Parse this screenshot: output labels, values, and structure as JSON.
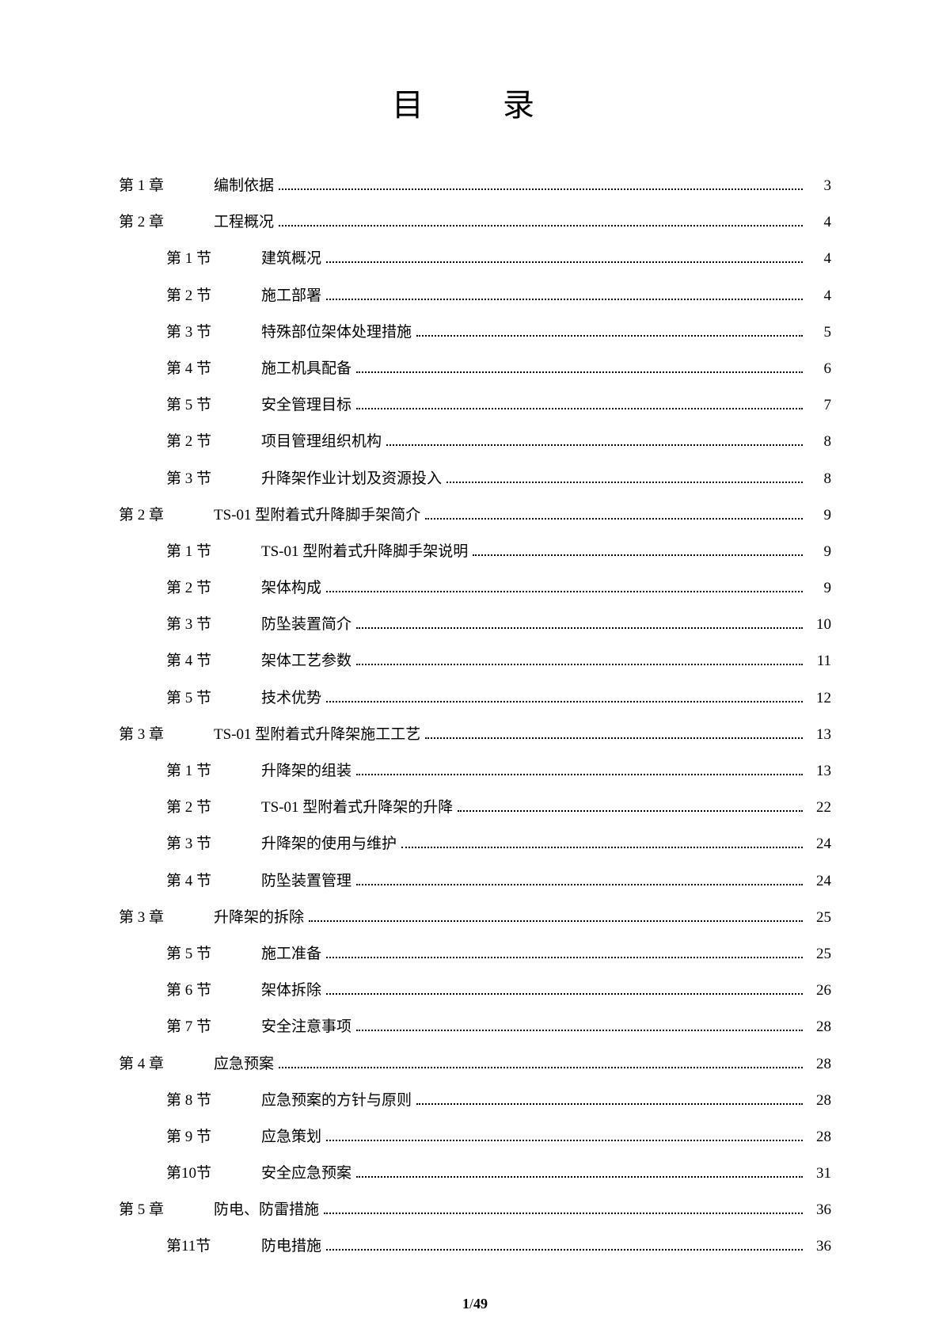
{
  "title": "目　录",
  "toc": {
    "entries": [
      {
        "level": "chapter",
        "label": "第 1 章",
        "title": "编制依据",
        "page": "3"
      },
      {
        "level": "chapter",
        "label": "第 2 章",
        "title": "工程概况",
        "page": "4"
      },
      {
        "level": "section",
        "label": "第 1 节",
        "title": "建筑概况",
        "page": "4"
      },
      {
        "level": "section",
        "label": "第 2 节",
        "title": "施工部署",
        "page": "4"
      },
      {
        "level": "section",
        "label": "第 3 节",
        "title": "特殊部位架体处理措施",
        "page": "5"
      },
      {
        "level": "section",
        "label": "第 4 节",
        "title": "施工机具配备",
        "page": "6"
      },
      {
        "level": "section",
        "label": "第 5 节",
        "title": "安全管理目标",
        "page": "7"
      },
      {
        "level": "section",
        "label": "第 2 节",
        "title": "项目管理组织机构",
        "page": "8"
      },
      {
        "level": "section",
        "label": "第 3 节",
        "title": "升降架作业计划及资源投入",
        "page": "8"
      },
      {
        "level": "chapter",
        "label": "第 2 章",
        "title": "TS-01 型附着式升降脚手架简介",
        "page": "9"
      },
      {
        "level": "section",
        "label": "第 1 节",
        "title": "TS-01 型附着式升降脚手架说明",
        "page": "9"
      },
      {
        "level": "section",
        "label": "第 2 节",
        "title": "架体构成",
        "page": "9"
      },
      {
        "level": "section",
        "label": "第 3 节",
        "title": "防坠装置简介",
        "page": "10"
      },
      {
        "level": "section",
        "label": "第 4 节",
        "title": "架体工艺参数",
        "page": "11"
      },
      {
        "level": "section",
        "label": "第 5 节",
        "title": "技术优势",
        "page": "12"
      },
      {
        "level": "chapter",
        "label": "第 3 章",
        "title": "TS-01 型附着式升降架施工工艺",
        "page": "13"
      },
      {
        "level": "section",
        "label": "第 1 节",
        "title": "升降架的组装",
        "page": "13"
      },
      {
        "level": "section",
        "label": "第 2 节",
        "title": "TS-01 型附着式升降架的升降",
        "page": "22"
      },
      {
        "level": "section",
        "label": "第 3 节",
        "title": "升降架的使用与维护",
        "page": "24"
      },
      {
        "level": "section",
        "label": "第 4 节",
        "title": "防坠装置管理",
        "page": "24"
      },
      {
        "level": "chapter",
        "label": "第 3 章",
        "title": "升降架的拆除",
        "page": "25"
      },
      {
        "level": "section",
        "label": "第 5 节",
        "title": "施工准备",
        "page": "25"
      },
      {
        "level": "section",
        "label": "第 6 节",
        "title": "架体拆除",
        "page": "26"
      },
      {
        "level": "section",
        "label": "第 7 节",
        "title": "安全注意事项",
        "page": "28"
      },
      {
        "level": "chapter",
        "label": "第 4 章",
        "title": "应急预案",
        "page": "28"
      },
      {
        "level": "section",
        "label": "第 8 节",
        "title": "应急预案的方针与原则",
        "page": "28"
      },
      {
        "level": "section",
        "label": "第 9 节",
        "title": "应急策划",
        "page": "28"
      },
      {
        "level": "section",
        "label": "第10节",
        "title": "安全应急预案",
        "page": "31"
      },
      {
        "level": "chapter",
        "label": "第 5 章",
        "title": "防电、防雷措施",
        "page": "36"
      },
      {
        "level": "section",
        "label": "第11节",
        "title": "防电措施",
        "page": "36"
      }
    ]
  },
  "footer": {
    "current_page": "1",
    "separator": "/",
    "total_pages": "49"
  }
}
